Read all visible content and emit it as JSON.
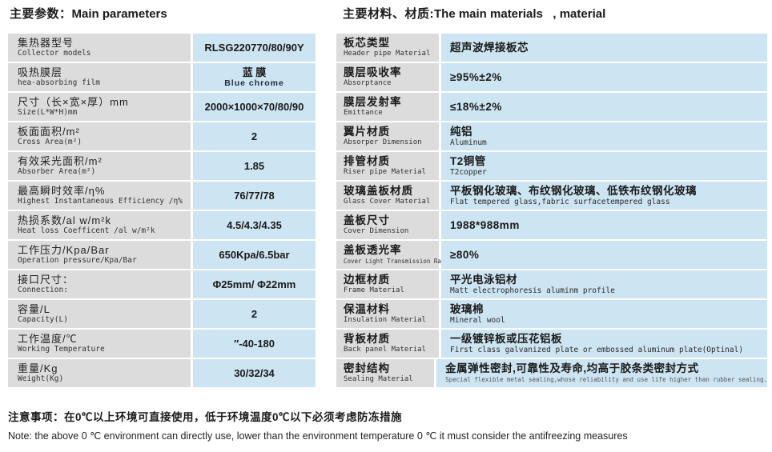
{
  "header": {
    "left_title_zh": "主要参数：",
    "left_title_en": "Main parameters",
    "right_title_zh": "主要材料、材质:",
    "right_title_en": "The main materials   , material"
  },
  "left_table": {
    "rows": [
      {
        "label_zh": "集热器型号",
        "label_en": "Collector models",
        "value": "RLSG220770/80/90Y",
        "value_sub": ""
      },
      {
        "label_zh": "吸热膜层",
        "label_en": "hea-absorbing film",
        "value": "蓝 膜",
        "value_sub": "Blue  chrome"
      },
      {
        "label_zh": "尺寸（长×宽×厚）mm",
        "label_en": "Size(L*W*H)mm",
        "value": "2000×1000×70/80/90",
        "value_sub": ""
      },
      {
        "label_zh": "板面面积/m²",
        "label_en": "Cross Area(m²)",
        "value": "2",
        "value_sub": ""
      },
      {
        "label_zh": "有效采光面积/m²",
        "label_en": "Absorber Area(m²)",
        "value": "1.85",
        "value_sub": ""
      },
      {
        "label_zh": "最高瞬时效率/η%",
        "label_en": "Highest Instantaneous Efficiency /η%",
        "value": "76/77/78",
        "value_sub": ""
      },
      {
        "label_zh": "热损系数/al w/m²k",
        "label_en": "Heat loss Coefficent /al w/m²k",
        "value": "4.5/4.3/4.35",
        "value_sub": ""
      },
      {
        "label_zh": "工作压力/Kpa/Bar",
        "label_en": "Operation pressure/Kpa/Bar",
        "value": "650Kpa/6.5bar",
        "value_sub": ""
      },
      {
        "label_zh": "接口尺寸：",
        "label_en": "Connection:",
        "value": "Φ25mm/ Φ22mm",
        "value_sub": ""
      },
      {
        "label_zh": "容量/L",
        "label_en": "Capacity(L)",
        "value": "2",
        "value_sub": ""
      },
      {
        "label_zh": "工作温度/℃",
        "label_en": "Working Temperature",
        "value": "″-40-180",
        "value_sub": ""
      },
      {
        "label_zh": "重量/Kg",
        "label_en": "Weight(Kg)",
        "value": "30/32/34",
        "value_sub": ""
      }
    ]
  },
  "right_table": {
    "rows": [
      {
        "label_zh": "板芯类型",
        "label_en": "Header pipe Material",
        "value_zh": "超声波焊接板芯",
        "value_en": ""
      },
      {
        "label_zh": "膜层吸收率",
        "label_en": "Absorptance",
        "value_zh": "≥95%±2%",
        "value_en": ""
      },
      {
        "label_zh": "膜层发射率",
        "label_en": "Emittance",
        "value_zh": "≤18%±2%",
        "value_en": ""
      },
      {
        "label_zh": "翼片材质",
        "label_en": "Absorper Dimension",
        "value_zh": "纯铝",
        "value_en": "Aluminum"
      },
      {
        "label_zh": "排管材质",
        "label_en": "Riser pipe Material",
        "value_zh": "T2铜管",
        "value_en": "T2copper"
      },
      {
        "label_zh": "玻璃盖板材质",
        "label_en": "Glass Cover Material",
        "value_zh": "平板钢化玻璃、布纹钢化玻璃、低铁布纹钢化玻璃",
        "value_en": "Flat tempered glass,fabric surfacetempered glass"
      },
      {
        "label_zh": "盖板尺寸",
        "label_en": "Cover Dimension",
        "value_zh": "1988*988mm",
        "value_en": ""
      },
      {
        "label_zh": "盖板透光率",
        "label_en": "Cover Light Transmission Rate",
        "value_zh": "≥80%",
        "value_en": ""
      },
      {
        "label_zh": "边框材质",
        "label_en": "Frame Material",
        "value_zh": "平光电泳铝材",
        "value_en": "Matt electrophoresis aluminm profile"
      },
      {
        "label_zh": "保温材料",
        "label_en": "Insulation Material",
        "value_zh": "玻璃棉",
        "value_en": "Mineral wool"
      },
      {
        "label_zh": "背板材质",
        "label_en": "Back panel Material",
        "value_zh": "一级镀锌板或压花铝板",
        "value_en": "First class galvanized plate or embossed aluminum plate(Optinal)"
      },
      {
        "label_zh": "密封结构",
        "label_en": "Sealing Material",
        "value_zh": "金属弹性密封,可靠性及寿命,均高于胶条类密封方式",
        "value_en": "Special flexible metal sealing,whose reliability and use life higher than rubber sealing."
      }
    ]
  },
  "notes": {
    "zh": "注意事项：在0℃以上环境可直接使用，低于环境温度0℃以下必须考虑防冻措施",
    "en": "Note: the above 0 ℃ environment can directly use, lower than the environment temperature 0 ℃ it must consider the antifreezing measures"
  },
  "colors": {
    "label_bg": "#dcdcdc",
    "value_bg": "#cde4f2"
  }
}
